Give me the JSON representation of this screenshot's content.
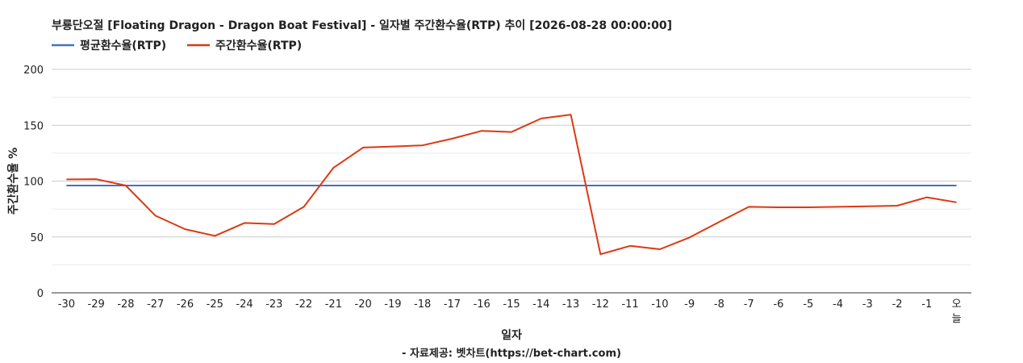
{
  "chart_data": {
    "type": "line",
    "title": "부룡단오절 [Floating Dragon - Dragon Boat Festival] - 일자별 주간환수율(RTP) 추이 [2026-08-28 00:00:00]",
    "xlabel": "일자",
    "ylabel": "주간환수율 %",
    "source": "- 자료제공: 벳차트(https://bet-chart.com)",
    "ylim": [
      0,
      200
    ],
    "yticks": [
      "0",
      "50",
      "100",
      "150",
      "200"
    ],
    "grid": true,
    "legend_position": "top-left",
    "categories": [
      "-30",
      "-29",
      "-28",
      "-27",
      "-26",
      "-25",
      "-24",
      "-23",
      "-22",
      "-21",
      "-20",
      "-19",
      "-18",
      "-17",
      "-16",
      "-15",
      "-14",
      "-13",
      "-12",
      "-11",
      "-10",
      "-9",
      "-8",
      "-7",
      "-6",
      "-5",
      "-4",
      "-3",
      "-2",
      "-1",
      "오늘"
    ],
    "series": [
      {
        "name": "평균환수율(RTP)",
        "color": "#4472c4",
        "values": [
          96,
          96,
          96,
          96,
          96,
          96,
          96,
          96,
          96,
          96,
          96,
          96,
          96,
          96,
          96,
          96,
          96,
          96,
          96,
          96,
          96,
          96,
          96,
          96,
          96,
          96,
          96,
          96,
          96,
          96,
          96
        ]
      },
      {
        "name": "주간환수율(RTP)",
        "color": "#dc3912",
        "values": [
          101.5,
          101.7,
          96,
          69,
          57,
          51,
          62.5,
          61.5,
          77,
          112,
          130,
          131,
          132,
          138,
          145,
          144,
          156,
          159.5,
          34.5,
          42,
          39,
          49.5,
          63.5,
          77,
          76.5,
          76.5,
          77,
          77.5,
          78,
          85.5,
          81
        ]
      }
    ]
  }
}
